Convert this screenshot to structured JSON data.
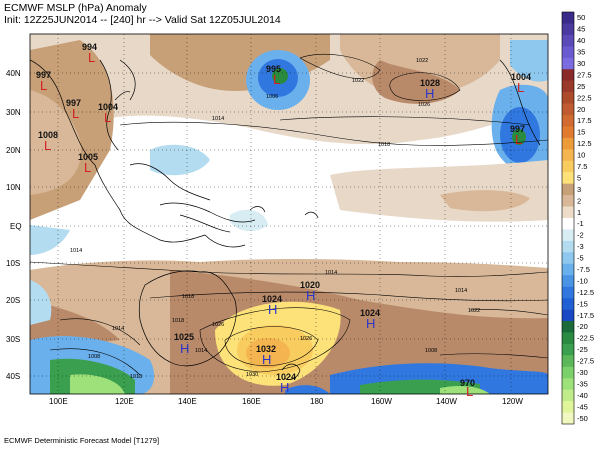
{
  "header": {
    "title": "ECMWF MSLP (hPa) Anomaly",
    "subtitle": "Init: 12Z25JUN2014 -- [240] hr --> Valid Sat 12Z05JUL2014"
  },
  "footer": "ECMWF Deterministic Forecast Model [T1279]",
  "axes": {
    "lat_labels": [
      "40N",
      "30N",
      "20N",
      "10N",
      "EQ",
      "10S",
      "20S",
      "30S",
      "40S"
    ],
    "lon_labels": [
      "100E",
      "120E",
      "140E",
      "160E",
      "180",
      "160W",
      "140W",
      "120W"
    ]
  },
  "colorbar": {
    "labels": [
      "50",
      "45",
      "40",
      "35",
      "30",
      "27.5",
      "25",
      "22.5",
      "20",
      "17.5",
      "15",
      "12.5",
      "10",
      "7.5",
      "5",
      "3",
      "2",
      "1",
      "-1",
      "-2",
      "-3",
      "-5",
      "-7.5",
      "-10",
      "-12.5",
      "-15",
      "-17.5",
      "-20",
      "-22.5",
      "-25",
      "-27.5",
      "-30",
      "-35",
      "-40",
      "-45",
      "-50"
    ],
    "colors": [
      "#3a2a8a",
      "#4a3aa0",
      "#5a4ab8",
      "#6a5acf",
      "#7a6ce0",
      "#8a2a2a",
      "#9a3a2a",
      "#ad4a2a",
      "#c05a30",
      "#d06a30",
      "#e07a30",
      "#ed9a3a",
      "#f4b450",
      "#f9cc60",
      "#fde27a",
      "#c8a078",
      "#d8b898",
      "#ecdcc8",
      "#ffffff",
      "#d8ecf4",
      "#b4dcf0",
      "#8ec8ee",
      "#6ab0ec",
      "#4a94e6",
      "#3078e0",
      "#2060d4",
      "#1848c4",
      "#1a6a3a",
      "#2a8a40",
      "#3aa050",
      "#5ab85a",
      "#7ad06a",
      "#9ee07a",
      "#c0ec8a",
      "#e0f49a",
      "#f0f8c0"
    ]
  },
  "centers": [
    {
      "value": "994",
      "type": "L"
    },
    {
      "value": "997",
      "type": "L"
    },
    {
      "value": "997",
      "type": "L"
    },
    {
      "value": "1004",
      "type": "L"
    },
    {
      "value": "1008",
      "type": "L"
    },
    {
      "value": "1005",
      "type": "L"
    },
    {
      "value": "995",
      "type": "L"
    },
    {
      "value": "1028",
      "type": "H"
    },
    {
      "value": "1004",
      "type": "L"
    },
    {
      "value": "997",
      "type": "L"
    },
    {
      "value": "1024",
      "type": "H"
    },
    {
      "value": "1020",
      "type": "H"
    },
    {
      "value": "1024",
      "type": "H"
    },
    {
      "value": "1025",
      "type": "H"
    },
    {
      "value": "1032",
      "type": "H"
    },
    {
      "value": "1024",
      "type": "H"
    },
    {
      "value": "970",
      "type": "L"
    }
  ],
  "isobar_labels": [
    "1022",
    "1026",
    "1022",
    "1014",
    "1018",
    "1014",
    "1014",
    "1018",
    "1014",
    "1022",
    "1014",
    "1026",
    "1018",
    "1008",
    "1014",
    "1030",
    "1026",
    "1018",
    "1008",
    "1006"
  ],
  "colors": {
    "positive_brown": "#b98a6a",
    "light_brown": "#e8d8c8",
    "blue": "#2060d4",
    "light_blue": "#b4dcf0",
    "green": "#3aa050",
    "yellow": "#fde27a",
    "orange": "#f4b450",
    "high_marker": "#2a36c8",
    "low_marker": "#d22020"
  }
}
